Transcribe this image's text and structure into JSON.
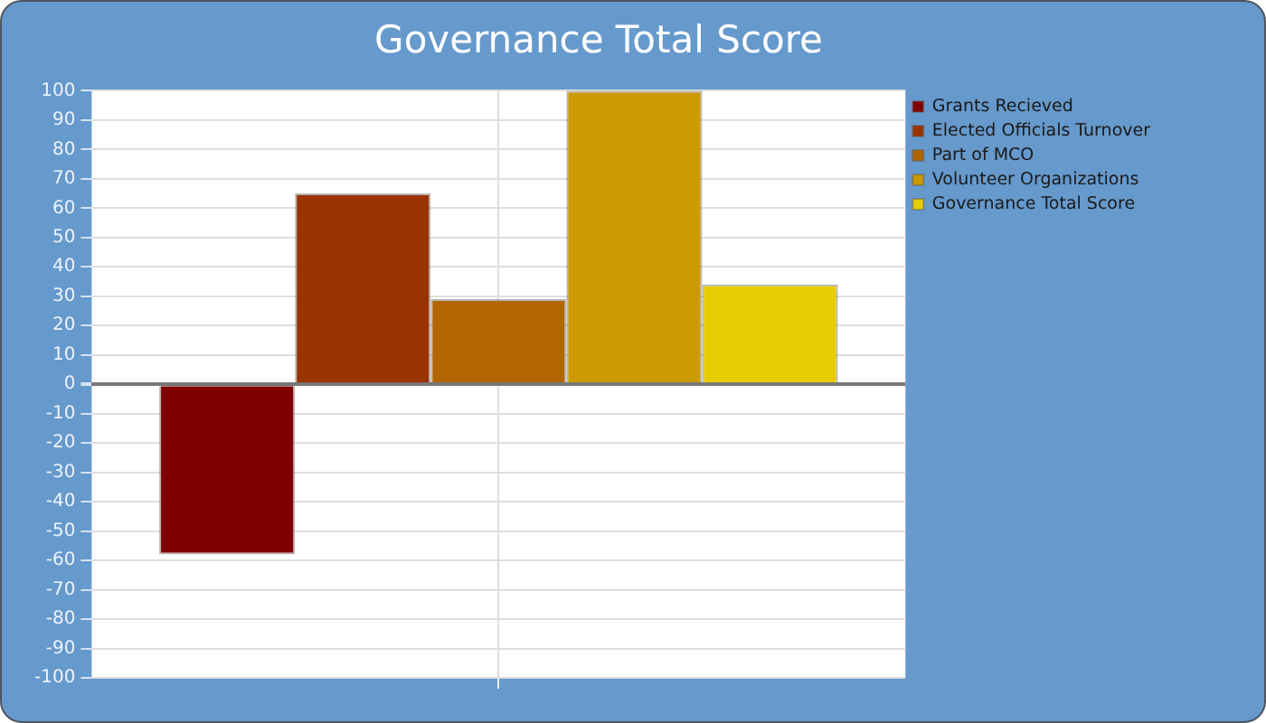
{
  "chart_data": {
    "type": "bar",
    "title": "Governance Total Score",
    "categories": [
      null
    ],
    "series": [
      {
        "name": "Grants Recieved",
        "color": "#800000",
        "values": [
          -58
        ]
      },
      {
        "name": "Elected Officials Turnover",
        "color": "#993300",
        "values": [
          65
        ]
      },
      {
        "name": "Part of MCO",
        "color": "#b36600",
        "values": [
          29
        ]
      },
      {
        "name": "Volunteer Organizations",
        "color": "#cc9900",
        "values": [
          100
        ]
      },
      {
        "name": "Governance Total Score",
        "color": "#e6cc00",
        "values": [
          34
        ]
      }
    ],
    "ylim": [
      -100,
      100
    ],
    "yticks": [
      -100,
      -90,
      -80,
      -70,
      -60,
      -50,
      -40,
      -30,
      -20,
      -10,
      0,
      10,
      20,
      30,
      40,
      50,
      60,
      70,
      80,
      90,
      100
    ],
    "grid": true,
    "legend": "top right"
  }
}
